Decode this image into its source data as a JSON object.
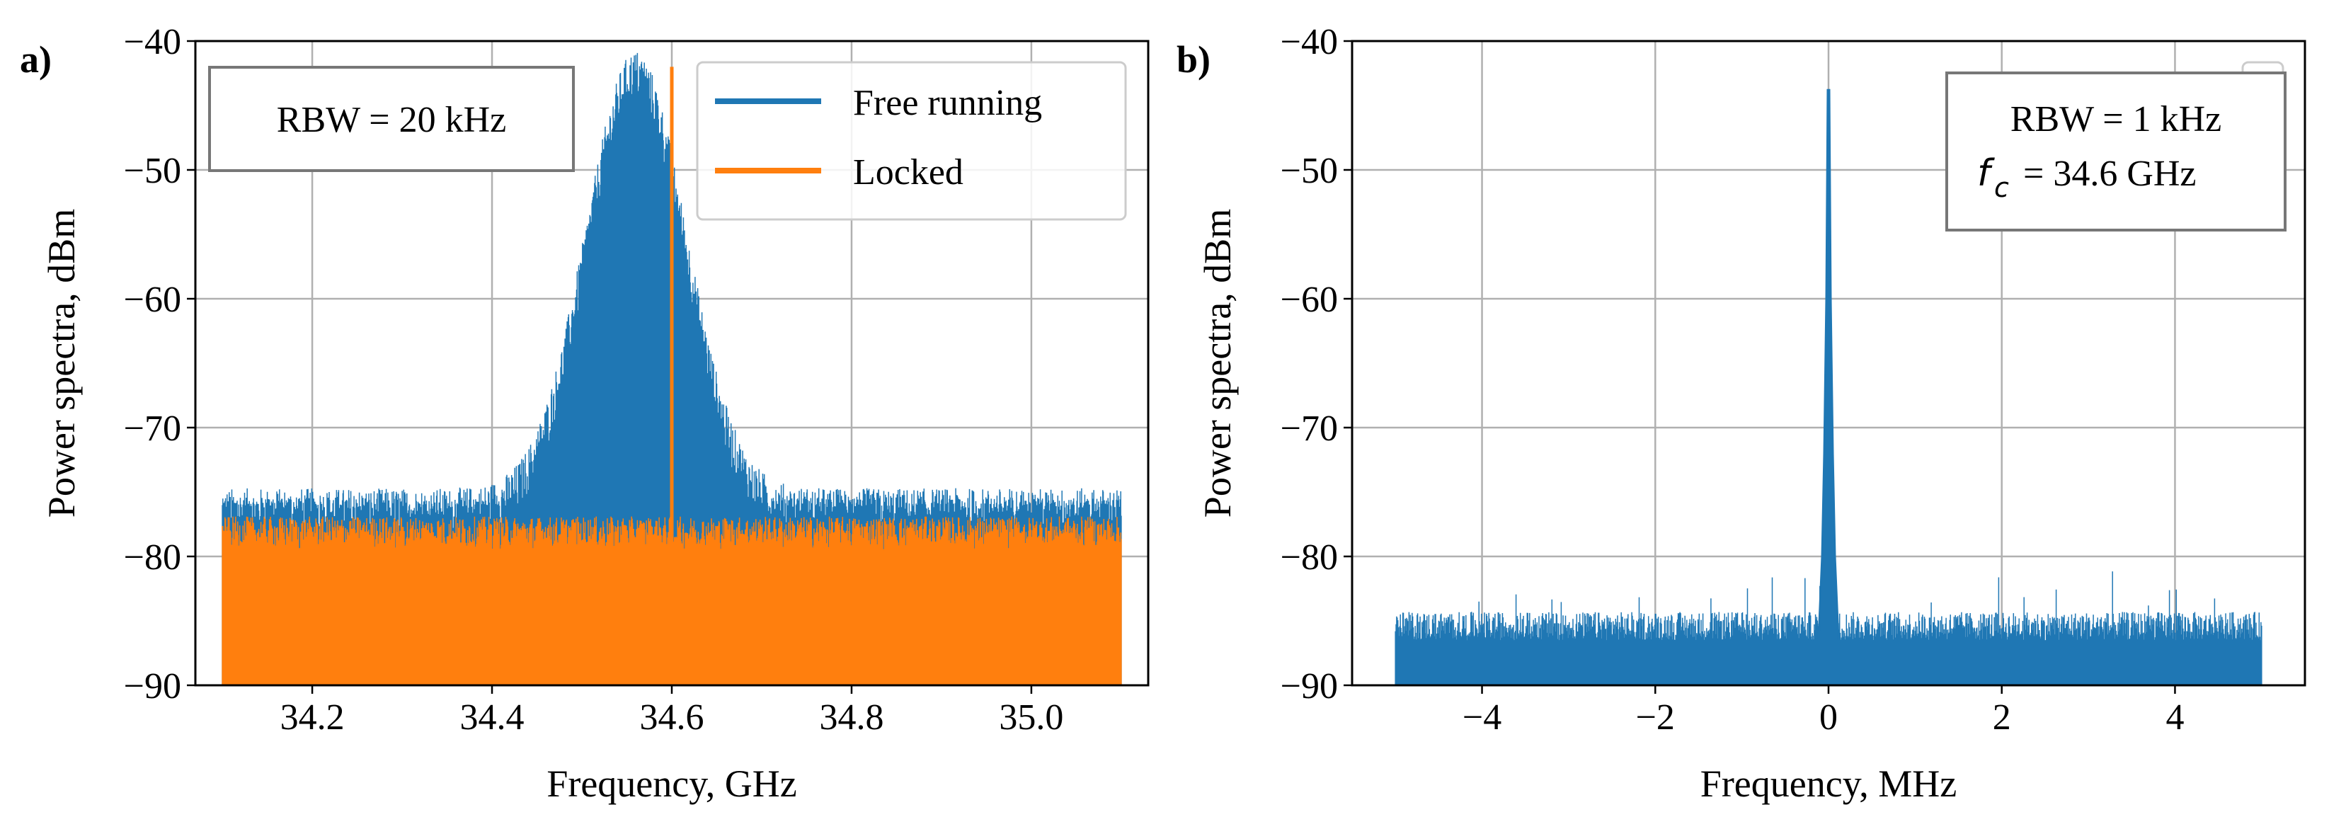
{
  "chart_data": [
    {
      "panel": "a)",
      "type": "line",
      "xlabel": "Frequency, GHz",
      "ylabel": "Power spectra, dBm",
      "xlim": [
        34.07,
        35.13
      ],
      "ylim": [
        -90,
        -40
      ],
      "xticks": [
        34.2,
        34.4,
        34.6,
        34.8,
        35.0
      ],
      "xtick_labels": [
        "34.2",
        "34.4",
        "34.6",
        "34.8",
        "35.0"
      ],
      "yticks": [
        -40,
        -50,
        -60,
        -70,
        -80,
        -90
      ],
      "ytick_labels": [
        "−40",
        "−50",
        "−60",
        "−70",
        "−80",
        "−90"
      ],
      "grid": true,
      "textbox": [
        "RBW = 20 kHz"
      ],
      "legend_position": "top-right",
      "series": [
        {
          "name": "Free running",
          "color": "#1f77b4",
          "x_range": [
            34.1,
            35.1
          ],
          "noise_floor": -78.5,
          "peak_center": 34.56,
          "peak_level": -42.5
        },
        {
          "name": "Locked",
          "color": "#ff7f0e",
          "x_range": [
            34.1,
            35.1
          ],
          "noise_floor": -79.5,
          "peak_x": 34.6,
          "peak_level": -42
        }
      ]
    },
    {
      "panel": "b)",
      "type": "line",
      "xlabel": "Frequency, MHz",
      "ylabel": "Power spectra, dBm",
      "xlim": [
        -5.5,
        5.5
      ],
      "ylim": [
        -90,
        -40
      ],
      "xticks": [
        -4,
        -2,
        0,
        2,
        4
      ],
      "xtick_labels": [
        "−4",
        "−2",
        "0",
        "2",
        "4"
      ],
      "yticks": [
        -40,
        -50,
        -60,
        -70,
        -80,
        -90
      ],
      "ytick_labels": [
        "−40",
        "−50",
        "−60",
        "−70",
        "−80",
        "−90"
      ],
      "grid": true,
      "textbox": [
        "RBW = 1 kHz",
        "= 34.6 GHz"
      ],
      "textbox_symbol": "f",
      "textbox_subscript": "c",
      "series": [
        {
          "name": "",
          "color": "#1f77b4",
          "x_range": [
            -5,
            5
          ],
          "noise_floor": -86.5,
          "peak_x": 0,
          "peak_level": -43.8
        }
      ]
    }
  ]
}
